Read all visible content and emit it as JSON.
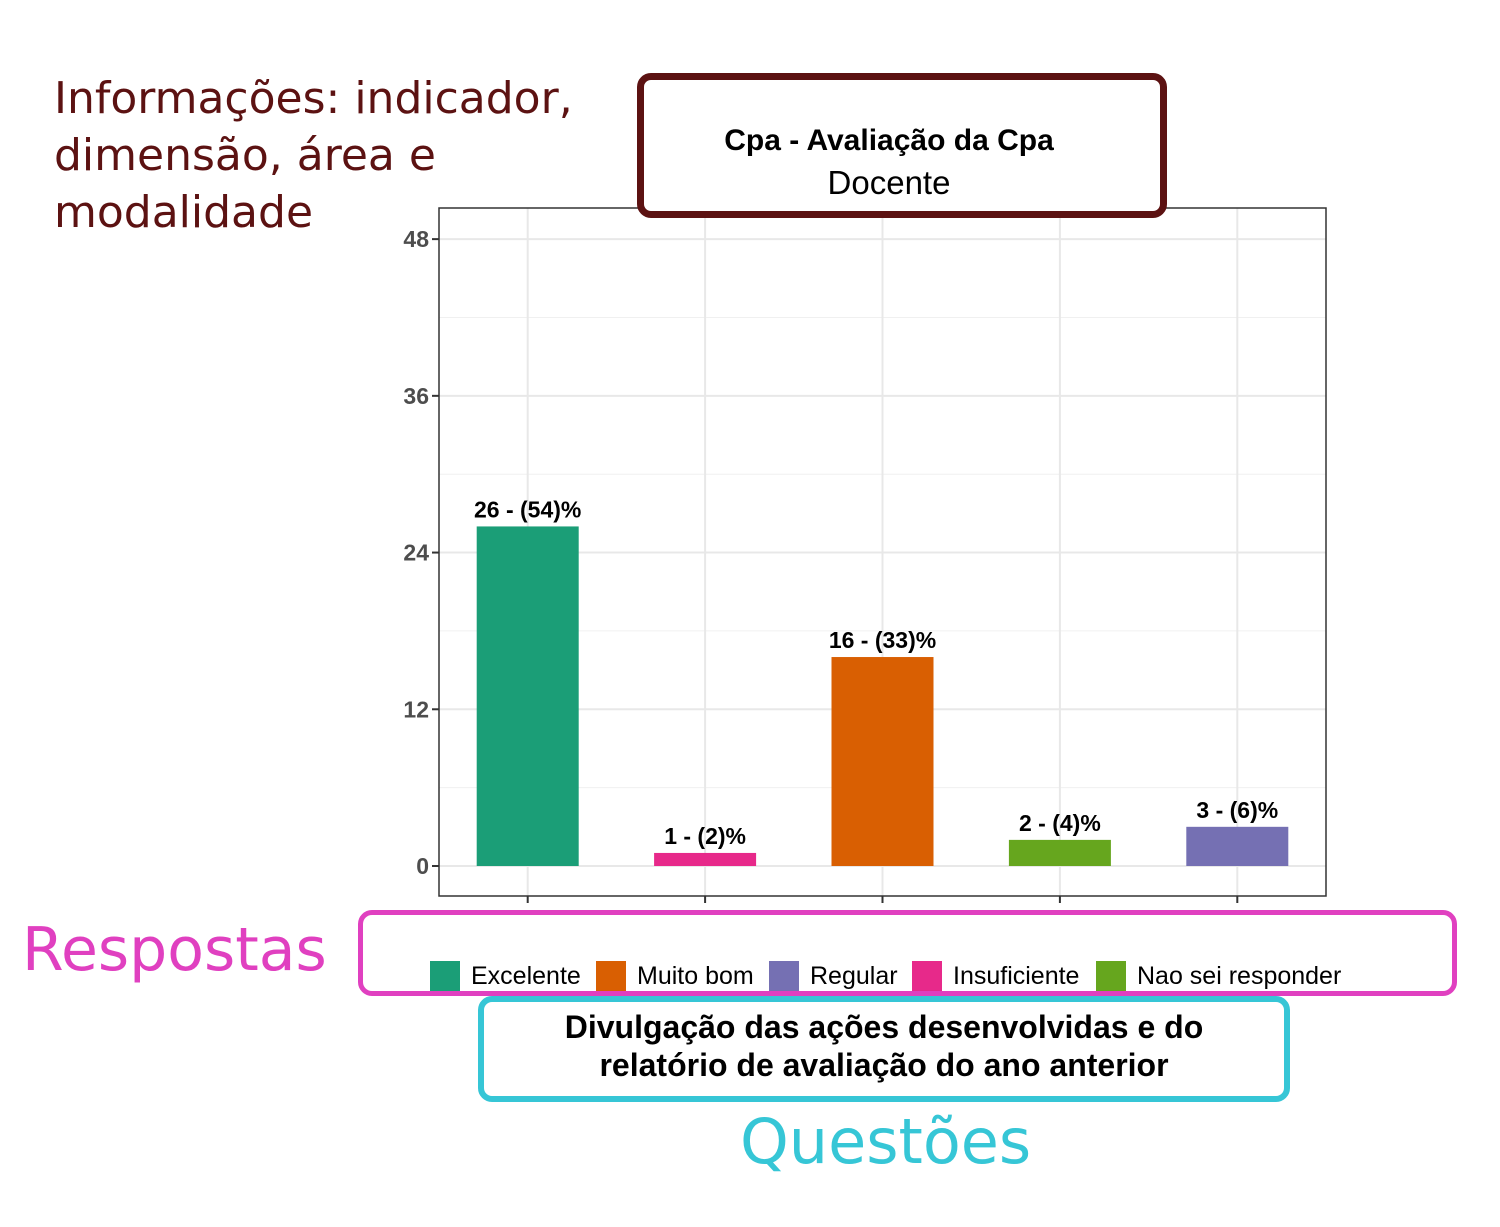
{
  "annotations": {
    "info": "Informações: indicador,\ndimensão, área e\nmodalidade",
    "respostas": "Respostas",
    "questoes": "Questões"
  },
  "chart_data": {
    "type": "bar",
    "title": "Cpa - Avaliação da Cpa",
    "subtitle": "Docente",
    "categories": [
      "Excelente",
      "Insuficiente",
      "Muito bom",
      "Nao sei responder",
      "Regular"
    ],
    "values": [
      26,
      1,
      16,
      2,
      3
    ],
    "labels": [
      "26 - (54)%",
      "1 - (2)%",
      "16 - (33)%",
      "2 - (4)%",
      "3 - (6)%"
    ],
    "colors": [
      "#1b9e77",
      "#e7298a",
      "#d95f02",
      "#66a61e",
      "#7570b3"
    ],
    "ylim": [
      0,
      50.6
    ],
    "yticks": [
      0,
      12,
      24,
      36,
      48
    ],
    "grid": true,
    "xlabel": "Divulgação das ações desenvolvidas e do\nrelatório de avaliação do ano anterior",
    "ylabel": "",
    "legend": {
      "position": "bottom",
      "items": [
        {
          "label": "Excelente",
          "color": "#1b9e77"
        },
        {
          "label": "Muito bom",
          "color": "#d95f02"
        },
        {
          "label": "Regular",
          "color": "#7570b3"
        },
        {
          "label": "Insuficiente",
          "color": "#e7298a"
        },
        {
          "label": "Nao sei responder",
          "color": "#66a61e"
        }
      ]
    }
  }
}
